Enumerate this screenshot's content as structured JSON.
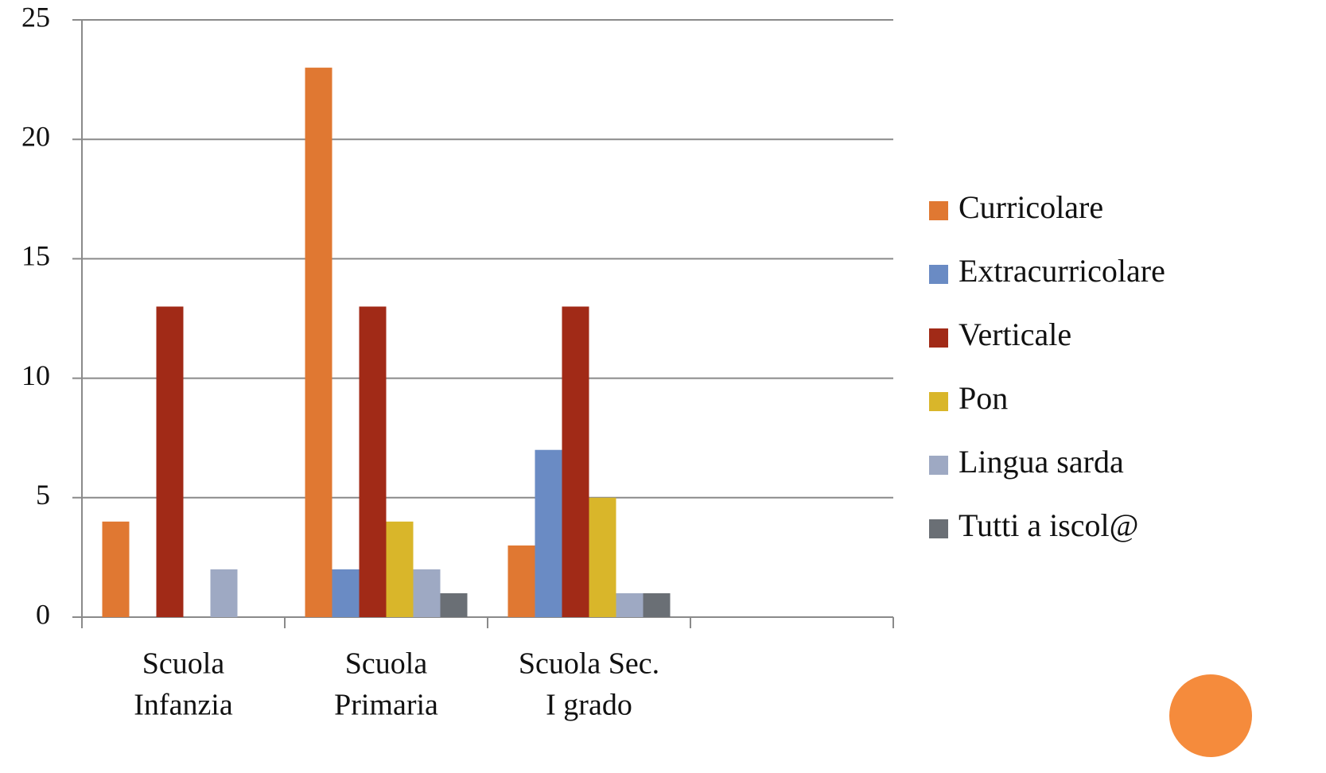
{
  "chart_data": {
    "type": "bar",
    "categories": [
      [
        "Scuola",
        "Infanzia"
      ],
      [
        "Scuola",
        "Primaria"
      ],
      [
        "Scuola Sec.",
        "I grado"
      ],
      null
    ],
    "series": [
      {
        "name": "Curricolare",
        "color": "#e07832",
        "values": [
          4,
          23,
          3,
          null
        ]
      },
      {
        "name": "Extracurricolare",
        "color": "#6a8bc4",
        "values": [
          null,
          2,
          7,
          null
        ]
      },
      {
        "name": "Verticale",
        "color": "#a12a17",
        "values": [
          13,
          13,
          13,
          null
        ]
      },
      {
        "name": "Pon",
        "color": "#d9b62a",
        "values": [
          null,
          4,
          5,
          null
        ]
      },
      {
        "name": "Lingua sarda",
        "color": "#9ea9c3",
        "values": [
          2,
          2,
          1,
          null
        ]
      },
      {
        "name": "Tutti a iscol@",
        "color": "#6a6f75",
        "values": [
          null,
          1,
          1,
          null
        ]
      }
    ],
    "ylim": [
      0,
      25
    ],
    "yticks": [
      0,
      5,
      10,
      15,
      20,
      25
    ],
    "grid": true,
    "legend": "right"
  }
}
